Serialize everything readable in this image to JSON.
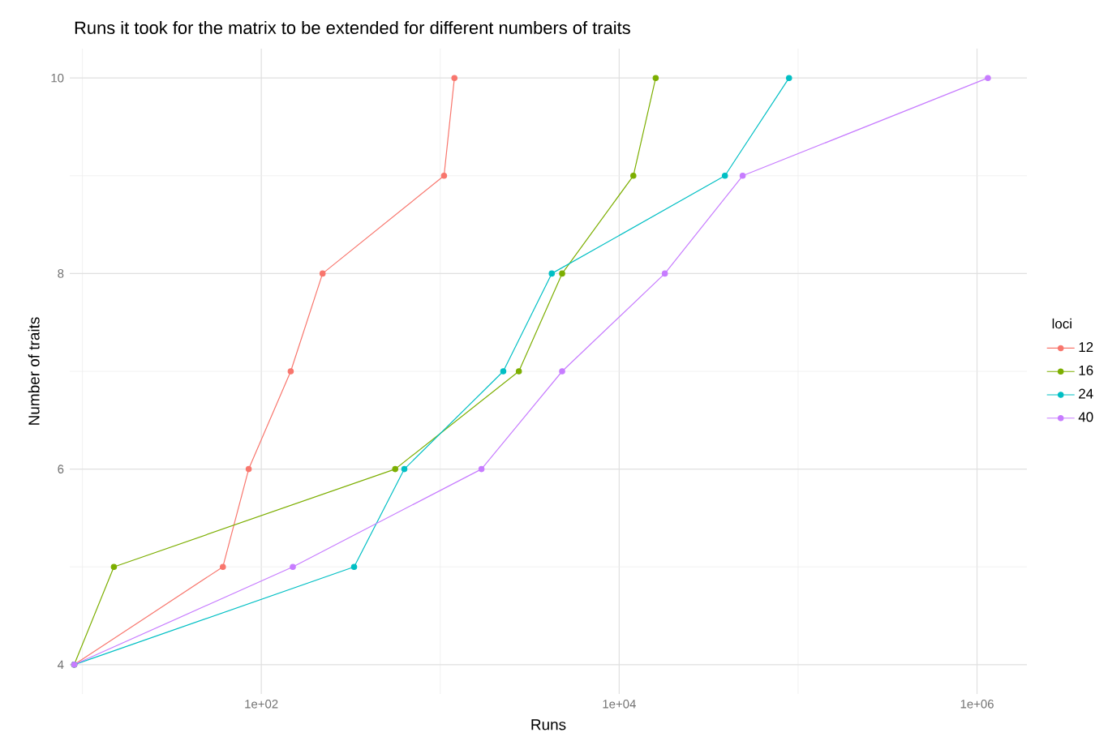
{
  "chart_data": {
    "type": "line",
    "title": "Runs it took for the matrix to be extended for different numbers of traits",
    "xlabel": "Runs",
    "ylabel": "Number of traits",
    "legend_title": "loci",
    "series": [
      {
        "name": "12",
        "color": "#F8766D",
        "x": [
          9,
          61,
          85,
          146,
          220,
          1050,
          1200
        ],
        "values": [
          4,
          5,
          6,
          7,
          8,
          9,
          10
        ]
      },
      {
        "name": "16",
        "color": "#7CAE00",
        "x": [
          9,
          15,
          560,
          2750,
          4800,
          12000,
          16000
        ],
        "values": [
          4,
          5,
          6,
          7,
          8,
          9,
          10
        ]
      },
      {
        "name": "24",
        "color": "#00BFC4",
        "x": [
          9,
          330,
          630,
          2250,
          4200,
          39000,
          89000
        ],
        "values": [
          4,
          5,
          6,
          7,
          8,
          9,
          10
        ]
      },
      {
        "name": "40",
        "color": "#C77CFF",
        "x": [
          9,
          150,
          1700,
          4800,
          18000,
          49000,
          1150000
        ],
        "values": [
          4,
          5,
          6,
          7,
          8,
          9,
          10
        ]
      }
    ],
    "log": "x",
    "xlim": [
      8.5,
      1900000
    ],
    "ylim": [
      3.7,
      10.3
    ],
    "xticks": [
      {
        "value": 100,
        "label": "1e+02"
      },
      {
        "value": 10000,
        "label": "1e+04"
      },
      {
        "value": 1000000,
        "label": "1e+06"
      }
    ],
    "yticks": [
      4,
      6,
      8,
      10
    ],
    "grid": true,
    "legend": "right",
    "marker": "circle",
    "line_style": "solid"
  }
}
